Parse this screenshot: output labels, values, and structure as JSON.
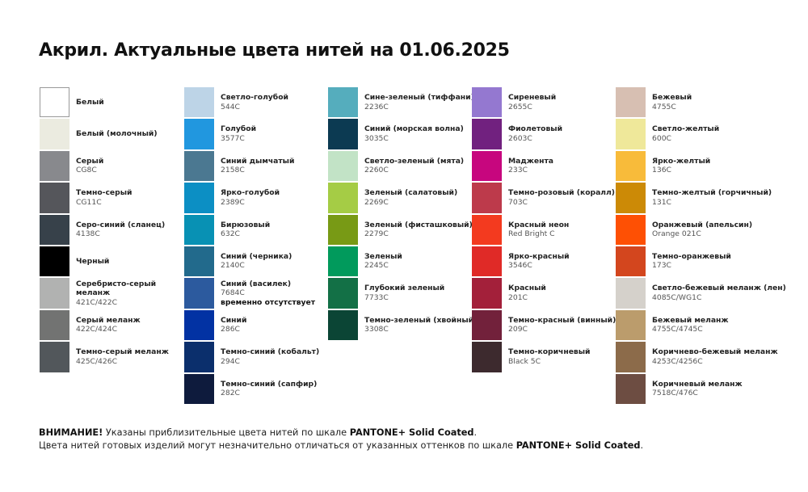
{
  "title": "Акрил. Актуальные цвета нитей на 01.06.2025",
  "columns": [
    [
      {
        "name": "Белый",
        "code": "",
        "color": "#ffffff"
      },
      {
        "name": "Белый (молочный)",
        "code": "",
        "color": "#ebebe0"
      },
      {
        "name": "Серый",
        "code": "CG8C",
        "color": "#88898d"
      },
      {
        "name": "Темно-серый",
        "code": "CG11C",
        "color": "#55565b"
      },
      {
        "name": "Серо-синий (сланец)",
        "code": "4138C",
        "color": "#37414a"
      },
      {
        "name": "Черный",
        "code": "",
        "color": "#000000"
      },
      {
        "name": "Серебристо-серый меланж",
        "code": "421C/422C",
        "color": "#b1b2b1"
      },
      {
        "name": "Серый меланж",
        "code": "422C/424C",
        "color": "#727372"
      },
      {
        "name": "Темно-серый меланж",
        "code": "425C/426C",
        "color": "#52575b"
      }
    ],
    [
      {
        "name": "Светло-голубой",
        "code": "544C",
        "color": "#bdd4e7"
      },
      {
        "name": "Голубой",
        "code": "3577C",
        "color": "#2197df"
      },
      {
        "name": "Синий дымчатый",
        "code": "2158C",
        "color": "#4b7891"
      },
      {
        "name": "Ярко-голубой",
        "code": "2389C",
        "color": "#0c8fc4"
      },
      {
        "name": "Бирюзовый",
        "code": "632C",
        "color": "#0891b4"
      },
      {
        "name": "Синий (черника)",
        "code": "2140C",
        "color": "#226a8c"
      },
      {
        "name": "Синий (василек)",
        "code": "7684C",
        "note": "временно отсутствует",
        "color": "#2c5a9e"
      },
      {
        "name": "Синий",
        "code": "286C",
        "color": "#0232a3"
      },
      {
        "name": "Темно-синий (кобальт)",
        "code": "294C",
        "color": "#0b2f6c"
      },
      {
        "name": "Темно-синий (сапфир)",
        "code": "282C",
        "color": "#0e1b3d"
      }
    ],
    [
      {
        "name": "Сине-зеленый (тиффани)",
        "code": "2236C",
        "color": "#55adbd"
      },
      {
        "name": "Синий (морская волна)",
        "code": "3035C",
        "color": "#0c3a52"
      },
      {
        "name": "Светло-зеленый (мята)",
        "code": "2260C",
        "color": "#c2e3c6"
      },
      {
        "name": "Зеленый (салатовый)",
        "code": "2269C",
        "color": "#a5cc45"
      },
      {
        "name": "Зеленый (фисташковый)",
        "code": "2279C",
        "color": "#789a15"
      },
      {
        "name": "Зеленый",
        "code": "2245C",
        "color": "#019a5c"
      },
      {
        "name": "Глубокий зеленый",
        "code": "7733C",
        "color": "#137046"
      },
      {
        "name": "Темно-зеленый (хвойный)",
        "code": "3308C",
        "color": "#0b4535"
      }
    ],
    [
      {
        "name": "Сиреневый",
        "code": "2655C",
        "color": "#9478d0"
      },
      {
        "name": "Фиолетовый",
        "code": "2603C",
        "color": "#71217f"
      },
      {
        "name": "Маджента",
        "code": "233C",
        "color": "#c7067e"
      },
      {
        "name": "Темно-розовый (коралл)",
        "code": "703C",
        "color": "#bd3a4b"
      },
      {
        "name": "Красный неон",
        "code": "Red Bright C",
        "color": "#f33a1f"
      },
      {
        "name": "Ярко-красный",
        "code": "3546C",
        "color": "#e02a27"
      },
      {
        "name": "Красный",
        "code": "201C",
        "color": "#a3203a"
      },
      {
        "name": "Темно-красный (винный)",
        "code": "209C",
        "color": "#72213b"
      },
      {
        "name": "Темно-коричневый",
        "code": "Black 5C",
        "color": "#3d2a2e"
      }
    ],
    [
      {
        "name": "Бежевый",
        "code": "4755C",
        "color": "#d7bfb2"
      },
      {
        "name": "Светло-желтый",
        "code": "600C",
        "color": "#efe89a"
      },
      {
        "name": "Ярко-желтый",
        "code": "136C",
        "color": "#f8bb3a"
      },
      {
        "name": "Темно-желтый (горчичный)",
        "code": "131C",
        "color": "#cc8a06"
      },
      {
        "name": "Оранжевый (апельсин)",
        "code": "Orange 021C",
        "color": "#fe5004"
      },
      {
        "name": "Темно-оранжевый",
        "code": "173C",
        "color": "#d3461e"
      },
      {
        "name": "Светло-бежевый меланж (лен)",
        "code": "4085C/WG1C",
        "color": "#d5d1cb"
      },
      {
        "name": "Бежевый меланж",
        "code": "4755C/4745C",
        "color": "#bb9c6c"
      },
      {
        "name": "Коричнево-бежевый меланж",
        "code": "4253C/4256C",
        "color": "#8c6b4a"
      },
      {
        "name": "Коричневый меланж",
        "code": "7518C/476C",
        "color": "#6d4d42"
      }
    ]
  ],
  "footer": {
    "line1_bold": "ВНИМАНИЕ!",
    "line1_text": " Указаны приблизительные цвета нитей по шкале ",
    "line1_brand": "PANTONE+ Solid Coated",
    "line1_end": ".",
    "line2_text": "Цвета нитей готовых изделий могут незначительно отличаться от указанных оттенков по шкале ",
    "line2_brand": "PANTONE+ Solid Coated",
    "line2_end": "."
  }
}
